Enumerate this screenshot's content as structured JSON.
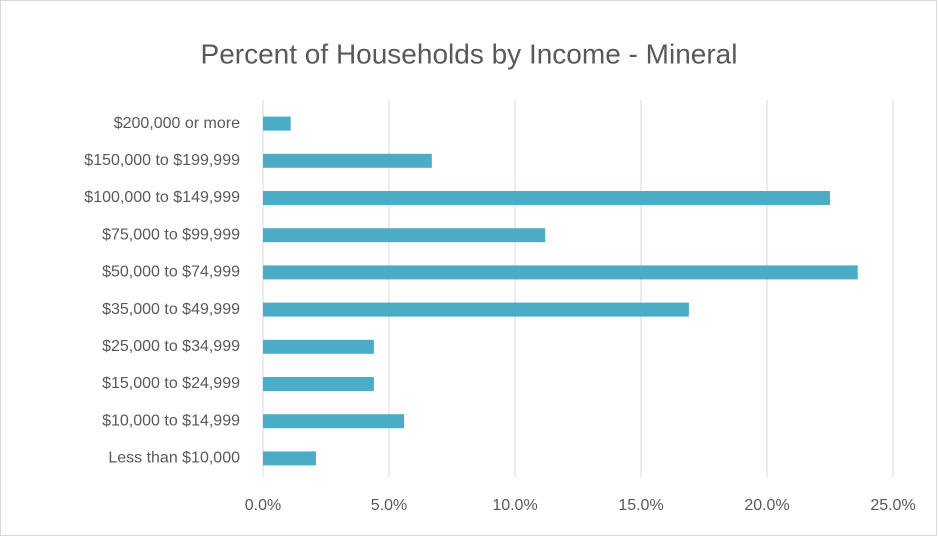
{
  "chart_data": {
    "type": "bar",
    "orientation": "horizontal",
    "title": "Percent of Households by Income - Mineral",
    "categories": [
      "Less than $10,000",
      "$10,000 to $14,999",
      "$15,000 to $24,999",
      "$25,000 to $34,999",
      "$35,000 to $49,999",
      "$50,000 to $74,999",
      "$75,000 to $99,999",
      "$100,000 to $149,999",
      "$150,000 to $199,999",
      "$200,000 or more"
    ],
    "values": [
      2.1,
      5.6,
      4.4,
      4.4,
      16.9,
      23.6,
      11.2,
      22.5,
      6.7,
      1.1
    ],
    "color": "#4bacc6",
    "xlim": [
      0,
      25
    ],
    "xticks": [
      {
        "value": 0,
        "label": "0.0%"
      },
      {
        "value": 5,
        "label": "5.0%"
      },
      {
        "value": 10,
        "label": "10.0%"
      },
      {
        "value": 15,
        "label": "15.0%"
      },
      {
        "value": 20,
        "label": "20.0%"
      },
      {
        "value": 25,
        "label": "25.0%"
      }
    ],
    "grid": true
  }
}
